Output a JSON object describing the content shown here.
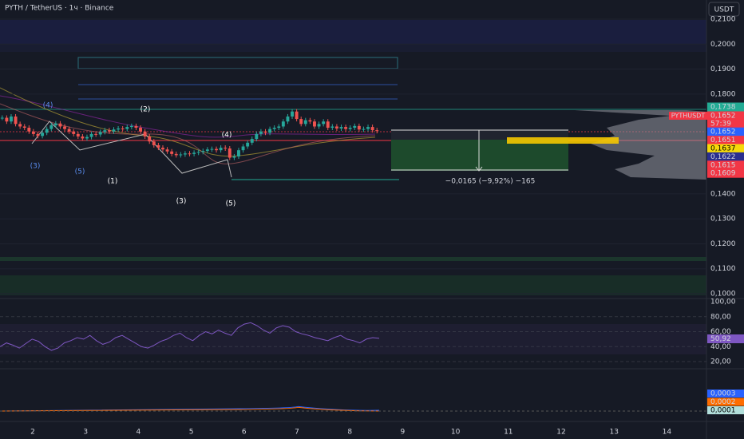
{
  "header": {
    "symbol": "PYTH / TetherUS · 1ч · Binance",
    "currency": "USDT"
  },
  "price_axis": {
    "range": [
      0.21,
      0.1
    ],
    "ticks": [
      {
        "value": 0.21,
        "label": "0,2100"
      },
      {
        "value": 0.2,
        "label": "0,2000"
      },
      {
        "value": 0.19,
        "label": "0,1900"
      },
      {
        "value": 0.18,
        "label": "0,1800"
      },
      {
        "value": 0.14,
        "label": "0,1400"
      },
      {
        "value": 0.13,
        "label": "0,1300"
      },
      {
        "value": 0.12,
        "label": "0,1200"
      },
      {
        "value": 0.11,
        "label": "0,1100"
      },
      {
        "value": 0.1,
        "label": "0,1000"
      }
    ]
  },
  "badges": [
    {
      "label": "0,1738",
      "color": "#22ab94"
    },
    {
      "label": "0,1652",
      "color": "#f23645"
    },
    {
      "label": "57:39",
      "color": "#f23645"
    },
    {
      "label": "0,1652",
      "color": "#2962ff"
    },
    {
      "label": "0,1651",
      "color": "#f23645"
    },
    {
      "label": "0,1637",
      "color": "#f5d90a"
    },
    {
      "label": "0,1622",
      "color": "#2a2e8f"
    },
    {
      "label": "0,1615",
      "color": "#f23645"
    },
    {
      "label": "0,1609",
      "color": "#f23645"
    }
  ],
  "symbol_badge": "PYTHUSDT",
  "wave_labels": [
    "(4)",
    "(2)",
    "(3)",
    "(5)",
    "(1)",
    "(3)",
    "(5)",
    "(4)"
  ],
  "measure_label": "−0,0165 (−9,92%) −165",
  "price_series": {
    "closes": [
      0.1705,
      0.169,
      0.171,
      0.168,
      0.167,
      0.1665,
      0.165,
      0.164,
      0.1632,
      0.1645,
      0.166,
      0.1675,
      0.1682,
      0.167,
      0.166,
      0.165,
      0.164,
      0.163,
      0.1622,
      0.1628,
      0.164,
      0.1638,
      0.1648,
      0.1655,
      0.165,
      0.1658,
      0.1662,
      0.166,
      0.1668,
      0.1672,
      0.1665,
      0.165,
      0.163,
      0.161,
      0.1595,
      0.1585,
      0.1578,
      0.157,
      0.156,
      0.1555,
      0.1558,
      0.1562,
      0.156,
      0.1565,
      0.1568,
      0.1572,
      0.1578,
      0.158,
      0.1575,
      0.1585,
      0.1582,
      0.1545,
      0.155,
      0.1575,
      0.159,
      0.1605,
      0.162,
      0.164,
      0.165,
      0.1645,
      0.166,
      0.1665,
      0.167,
      0.169,
      0.171,
      0.173,
      0.17,
      0.168,
      0.1695,
      0.169,
      0.167,
      0.168,
      0.169,
      0.1665,
      0.167,
      0.1662,
      0.1668,
      0.166,
      0.1665,
      0.1672,
      0.1658,
      0.166,
      0.1668,
      0.1655,
      0.1652
    ]
  },
  "rsi": {
    "range": [
      100,
      20
    ],
    "ticks": [
      {
        "value": 100,
        "label": "100,00"
      },
      {
        "value": 80,
        "label": "80,00"
      },
      {
        "value": 60,
        "label": "60,00"
      },
      {
        "value": 40,
        "label": "40,00"
      },
      {
        "value": 20,
        "label": "20,00"
      }
    ],
    "badge": "50,92",
    "values": [
      40,
      45,
      42,
      38,
      44,
      50,
      47,
      40,
      35,
      38,
      45,
      48,
      52,
      50,
      55,
      48,
      43,
      46,
      52,
      55,
      50,
      45,
      40,
      38,
      42,
      47,
      50,
      55,
      58,
      52,
      48,
      55,
      60,
      57,
      62,
      58,
      55,
      65,
      70,
      72,
      68,
      62,
      58,
      65,
      68,
      66,
      60,
      57,
      55,
      52,
      50,
      48,
      52,
      55,
      50,
      48,
      45,
      50,
      52,
      51
    ]
  },
  "macd_badges": [
    {
      "label": "0,0003",
      "color": "#2962ff"
    },
    {
      "label": "0,0002",
      "color": "#ff6d00"
    },
    {
      "label": "0,0001",
      "color": "#b2dfdb"
    }
  ],
  "time_axis": [
    "2",
    "3",
    "4",
    "5",
    "6",
    "7",
    "8",
    "9",
    "10",
    "11",
    "12",
    "13",
    "14"
  ]
}
